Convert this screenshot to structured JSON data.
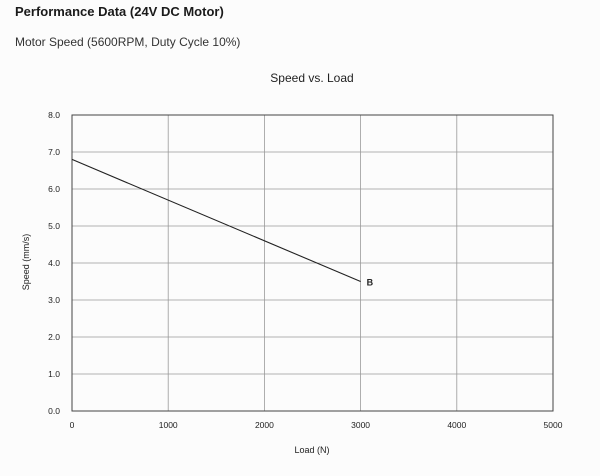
{
  "page": {
    "title": "Performance Data (24V DC Motor)",
    "subtitle": "Motor Speed (5600RPM, Duty Cycle 10%)"
  },
  "chart_data": {
    "type": "line",
    "title": "Speed vs. Load",
    "xlabel": "Load (N)",
    "ylabel": "Speed (mm/s)",
    "xlim": [
      0,
      5000
    ],
    "ylim": [
      0,
      8.0
    ],
    "x_ticks": [
      "0",
      "1000",
      "2000",
      "3000",
      "4000",
      "5000"
    ],
    "y_ticks": [
      "0.0",
      "1.0",
      "2.0",
      "3.0",
      "4.0",
      "5.0",
      "6.0",
      "7.0",
      "8.0"
    ],
    "grid": true,
    "series": [
      {
        "name": "B",
        "x": [
          0,
          3000
        ],
        "y": [
          6.8,
          3.5
        ],
        "color": "#222222"
      }
    ]
  }
}
